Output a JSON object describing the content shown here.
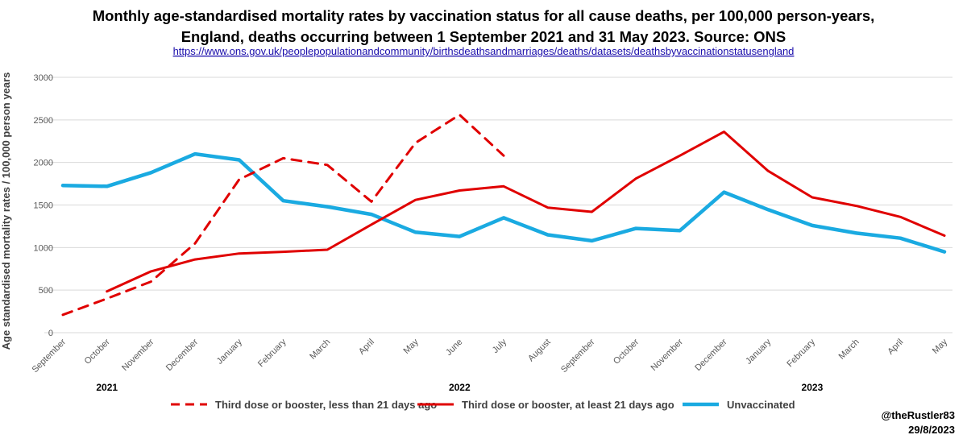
{
  "chart_data": {
    "type": "line",
    "title_line1": "Monthly age-standardised mortality rates by vaccination status for all cause deaths, per 100,000 person-years,",
    "title_line2": "England, deaths occurring between 1 September 2021 and 31 May 2023. Source: ONS",
    "source_url": "https://www.ons.gov.uk/peoplepopulationandcommunity/birthsdeathsandmarriages/deaths/datasets/deathsbyvaccinationstatusengland",
    "ylabel": "Age standardised mortality rates / 100,000 person years",
    "xlabel": "",
    "ylim": [
      0,
      3000
    ],
    "yticks": [
      0,
      500,
      1000,
      1500,
      2000,
      2500,
      3000
    ],
    "grid": "horizontal",
    "categories": [
      "September",
      "October",
      "November",
      "December",
      "January",
      "February",
      "March",
      "April",
      "May",
      "June",
      "July",
      "August",
      "September",
      "October",
      "November",
      "December",
      "January",
      "February",
      "March",
      "April",
      "May"
    ],
    "year_labels": [
      {
        "label": "2021",
        "category_index": 1
      },
      {
        "label": "2022",
        "category_index": 9
      },
      {
        "label": "2023",
        "category_index": 17
      }
    ],
    "legend_position": "bottom",
    "series": [
      {
        "name": "Third dose or booster, less than 21 days ago",
        "color": "#e00000",
        "dash": "dashed",
        "values": [
          210,
          400,
          600,
          1050,
          1800,
          2050,
          1970,
          1540,
          2230,
          2560,
          2080,
          null,
          null,
          null,
          null,
          null,
          null,
          null,
          null,
          null,
          null
        ]
      },
      {
        "name": "Third dose or booster, at least 21 days ago",
        "color": "#e00000",
        "dash": "solid",
        "values": [
          null,
          485,
          720,
          860,
          930,
          950,
          975,
          1270,
          1560,
          1670,
          1720,
          1470,
          1420,
          1810,
          2080,
          2360,
          1900,
          1590,
          1490,
          1360,
          1140
        ]
      },
      {
        "name": "Unvaccinated",
        "color": "#1aaae1",
        "dash": "solid",
        "values": [
          1730,
          1720,
          1880,
          2100,
          2030,
          1550,
          1480,
          1390,
          1180,
          1130,
          1350,
          1150,
          1080,
          1225,
          1200,
          1650,
          1445,
          1260,
          1170,
          1110,
          950
        ]
      }
    ]
  },
  "credit": {
    "handle": "@theRustler83",
    "date": "29/8/2023"
  }
}
